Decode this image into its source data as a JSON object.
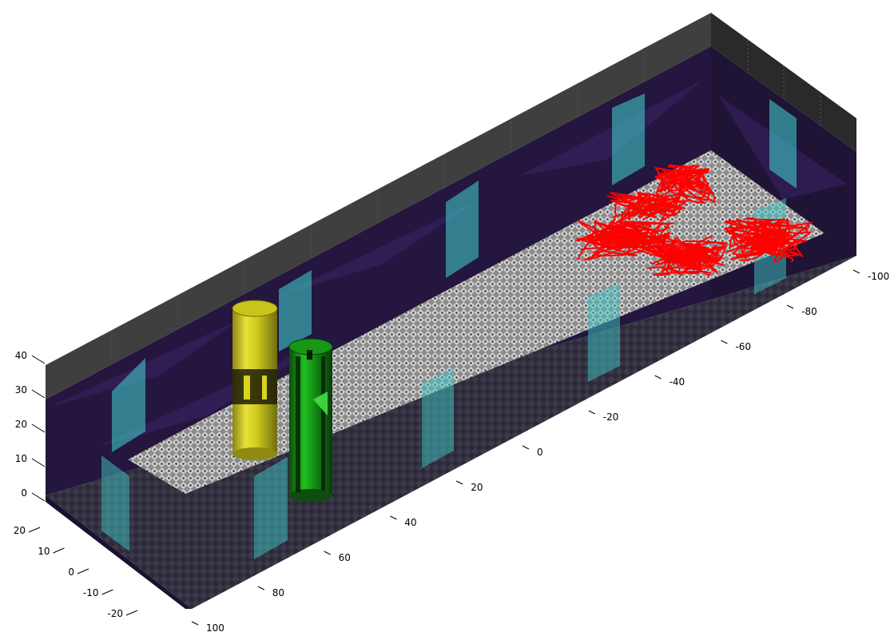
{
  "chart_data": {
    "type": "3d-scene",
    "title": "",
    "axes": {
      "x": {
        "label": "",
        "range": [
          -100,
          100
        ],
        "ticks": [
          -100,
          -80,
          -60,
          -40,
          -20,
          0,
          20,
          40,
          60,
          80,
          100
        ]
      },
      "y": {
        "label": "",
        "range": [
          -25,
          25
        ],
        "ticks": [
          -20,
          -10,
          0,
          10,
          20
        ]
      },
      "z": {
        "label": "",
        "range": [
          0,
          40
        ],
        "ticks": [
          0,
          10,
          20,
          30,
          40
        ]
      }
    },
    "colors": {
      "walls": "#2a1746",
      "ceiling": "#3c3c3c",
      "floor": "#2b2a37",
      "walkway": "#9a9a9a",
      "window": "#3fc6c6",
      "cylinder_yellow": "#d8d420",
      "cylinder_green": "#1ea01e",
      "trajectory": "#ff0000"
    },
    "objects": [
      {
        "kind": "cylinder",
        "color": "yellow"
      },
      {
        "kind": "cylinder",
        "color": "green"
      },
      {
        "kind": "trajectory",
        "color": "red"
      }
    ]
  }
}
